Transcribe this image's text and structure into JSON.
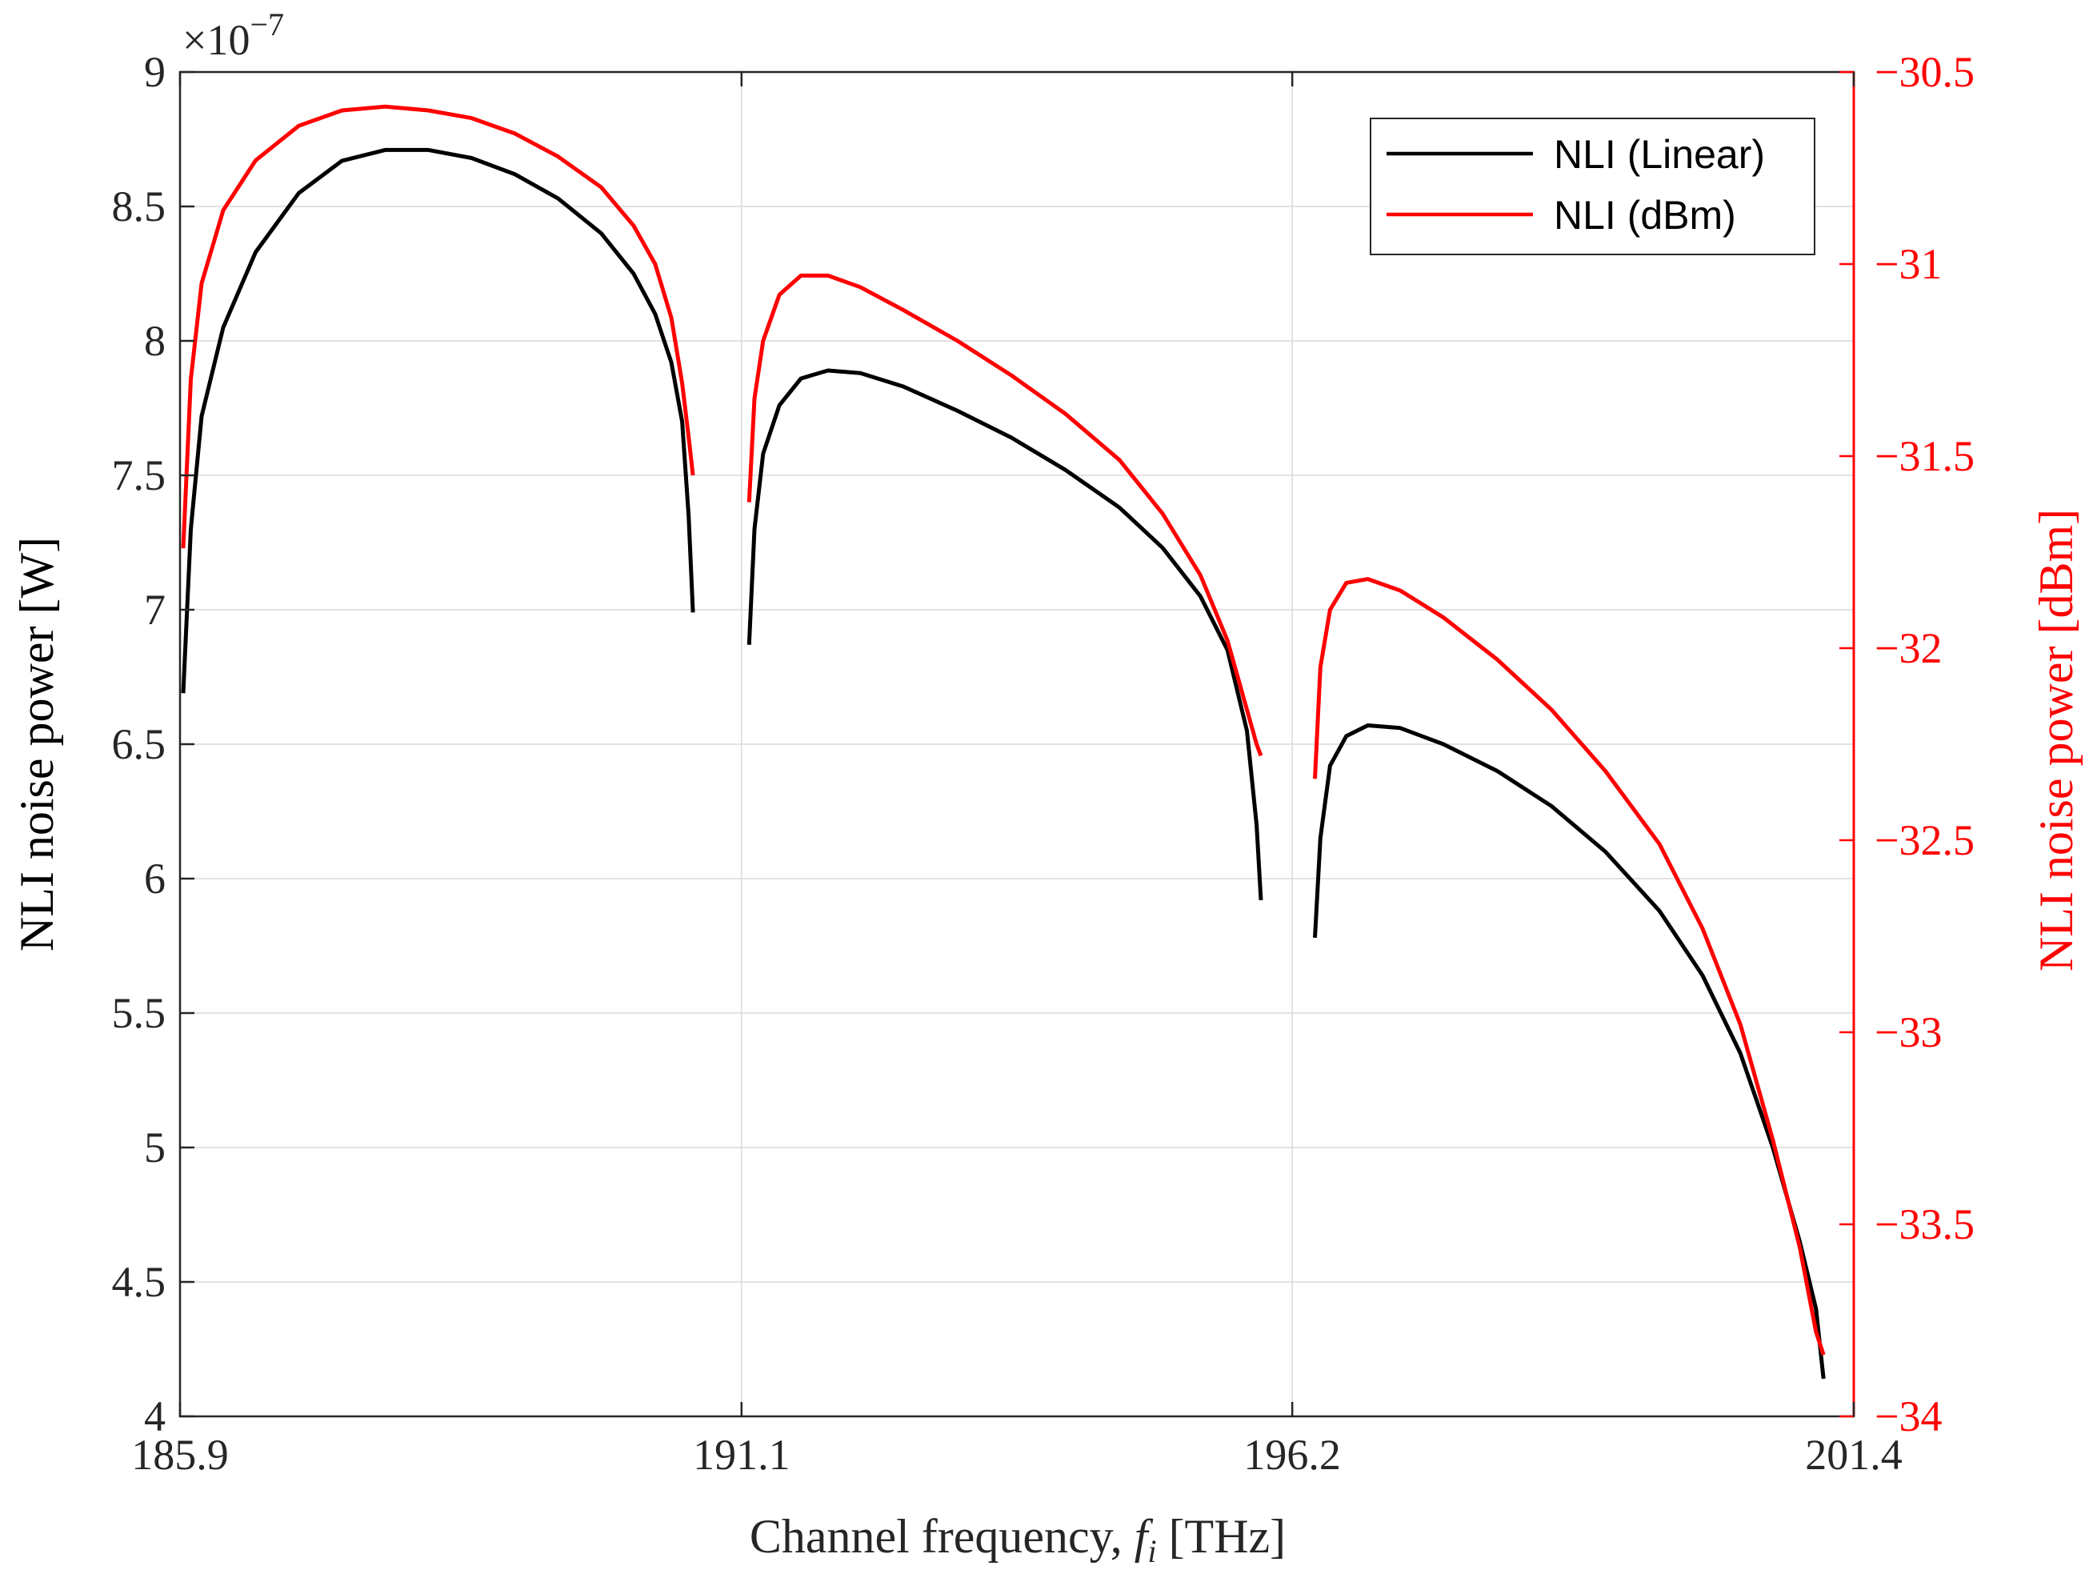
{
  "chart_data": {
    "type": "line",
    "title": "",
    "xlabel_prefix": "Channel frequency,",
    "xlabel_symbol": "f",
    "xlabel_subscript": "i",
    "xlabel_unit": "[THz]",
    "ylabel_left": "NLI noise power [W]",
    "ylabel_right": "NLI noise power [dBm]",
    "y_left_exponent_base": "×10",
    "y_left_exponent_power": "−7",
    "xlim": [
      185.9,
      201.4
    ],
    "ylim_left": [
      4,
      9
    ],
    "ylim_right": [
      -34,
      -30.5
    ],
    "x_ticks": [
      "185.9",
      "191.1",
      "196.2",
      "201.4"
    ],
    "x_tick_values": [
      185.9,
      191.1,
      196.2,
      201.4
    ],
    "y_left_ticks": [
      "4",
      "4.5",
      "5",
      "5.5",
      "6",
      "6.5",
      "7",
      "7.5",
      "8",
      "8.5",
      "9"
    ],
    "y_left_tick_values": [
      4,
      4.5,
      5,
      5.5,
      6,
      6.5,
      7,
      7.5,
      8,
      8.5,
      9
    ],
    "y_right_ticks": [
      "−34",
      "−33.5",
      "−33",
      "−32.5",
      "−32",
      "−31.5",
      "−31",
      "−30.5"
    ],
    "y_right_tick_values": [
      -34,
      -33.5,
      -33,
      -32.5,
      -32,
      -31.5,
      -31,
      -30.5
    ],
    "grid": true,
    "legend_position": "top-right",
    "series": [
      {
        "name": "NLI (Linear)",
        "axis": "left",
        "color": "#000000",
        "segments": [
          [
            [
              185.93,
              6.69
            ],
            [
              186.0,
              7.3
            ],
            [
              186.1,
              7.72
            ],
            [
              186.3,
              8.05
            ],
            [
              186.6,
              8.33
            ],
            [
              187.0,
              8.55
            ],
            [
              187.4,
              8.67
            ],
            [
              187.8,
              8.71
            ],
            [
              188.2,
              8.71
            ],
            [
              188.6,
              8.68
            ],
            [
              189.0,
              8.62
            ],
            [
              189.4,
              8.53
            ],
            [
              189.8,
              8.4
            ],
            [
              190.1,
              8.25
            ],
            [
              190.3,
              8.1
            ],
            [
              190.45,
              7.92
            ],
            [
              190.55,
              7.7
            ],
            [
              190.61,
              7.35
            ],
            [
              190.65,
              6.99
            ]
          ],
          [
            [
              191.17,
              6.87
            ],
            [
              191.22,
              7.3
            ],
            [
              191.3,
              7.58
            ],
            [
              191.45,
              7.76
            ],
            [
              191.65,
              7.86
            ],
            [
              191.9,
              7.89
            ],
            [
              192.2,
              7.88
            ],
            [
              192.6,
              7.83
            ],
            [
              193.1,
              7.74
            ],
            [
              193.6,
              7.64
            ],
            [
              194.1,
              7.52
            ],
            [
              194.6,
              7.38
            ],
            [
              195.0,
              7.23
            ],
            [
              195.35,
              7.05
            ],
            [
              195.6,
              6.85
            ],
            [
              195.78,
              6.55
            ],
            [
              195.87,
              6.2
            ],
            [
              195.91,
              5.92
            ]
          ],
          [
            [
              196.41,
              5.78
            ],
            [
              196.46,
              6.15
            ],
            [
              196.55,
              6.42
            ],
            [
              196.7,
              6.53
            ],
            [
              196.9,
              6.57
            ],
            [
              197.2,
              6.56
            ],
            [
              197.6,
              6.5
            ],
            [
              198.1,
              6.4
            ],
            [
              198.6,
              6.27
            ],
            [
              199.1,
              6.1
            ],
            [
              199.6,
              5.88
            ],
            [
              200.0,
              5.64
            ],
            [
              200.35,
              5.35
            ],
            [
              200.65,
              5.0
            ],
            [
              200.9,
              4.65
            ],
            [
              201.05,
              4.4
            ],
            [
              201.12,
              4.14
            ]
          ]
        ]
      },
      {
        "name": "NLI (dBm)",
        "axis": "right",
        "color": "#ff0000",
        "segments": [
          [
            [
              185.93,
              -31.74
            ],
            [
              186.0,
              -31.3
            ],
            [
              186.1,
              -31.05
            ],
            [
              186.3,
              -30.86
            ],
            [
              186.6,
              -30.73
            ],
            [
              187.0,
              -30.64
            ],
            [
              187.4,
              -30.6
            ],
            [
              187.8,
              -30.59
            ],
            [
              188.2,
              -30.6
            ],
            [
              188.6,
              -30.62
            ],
            [
              189.0,
              -30.66
            ],
            [
              189.4,
              -30.72
            ],
            [
              189.8,
              -30.8
            ],
            [
              190.1,
              -30.9
            ],
            [
              190.3,
              -31.0
            ],
            [
              190.45,
              -31.14
            ],
            [
              190.55,
              -31.31
            ],
            [
              190.61,
              -31.45
            ],
            [
              190.65,
              -31.55
            ]
          ],
          [
            [
              191.17,
              -31.62
            ],
            [
              191.22,
              -31.35
            ],
            [
              191.3,
              -31.2
            ],
            [
              191.45,
              -31.08
            ],
            [
              191.65,
              -31.03
            ],
            [
              191.9,
              -31.03
            ],
            [
              192.2,
              -31.06
            ],
            [
              192.6,
              -31.12
            ],
            [
              193.1,
              -31.2
            ],
            [
              193.6,
              -31.29
            ],
            [
              194.1,
              -31.39
            ],
            [
              194.6,
              -31.51
            ],
            [
              195.0,
              -31.65
            ],
            [
              195.35,
              -31.81
            ],
            [
              195.6,
              -31.98
            ],
            [
              195.78,
              -32.16
            ],
            [
              195.87,
              -32.25
            ],
            [
              195.91,
              -32.28
            ]
          ],
          [
            [
              196.41,
              -32.34
            ],
            [
              196.46,
              -32.05
            ],
            [
              196.55,
              -31.9
            ],
            [
              196.7,
              -31.83
            ],
            [
              196.9,
              -31.82
            ],
            [
              197.2,
              -31.85
            ],
            [
              197.6,
              -31.92
            ],
            [
              198.1,
              -32.03
            ],
            [
              198.6,
              -32.16
            ],
            [
              199.1,
              -32.32
            ],
            [
              199.6,
              -32.51
            ],
            [
              200.0,
              -32.73
            ],
            [
              200.35,
              -32.98
            ],
            [
              200.65,
              -33.28
            ],
            [
              200.9,
              -33.56
            ],
            [
              201.05,
              -33.78
            ],
            [
              201.12,
              -33.84
            ]
          ]
        ]
      }
    ]
  }
}
